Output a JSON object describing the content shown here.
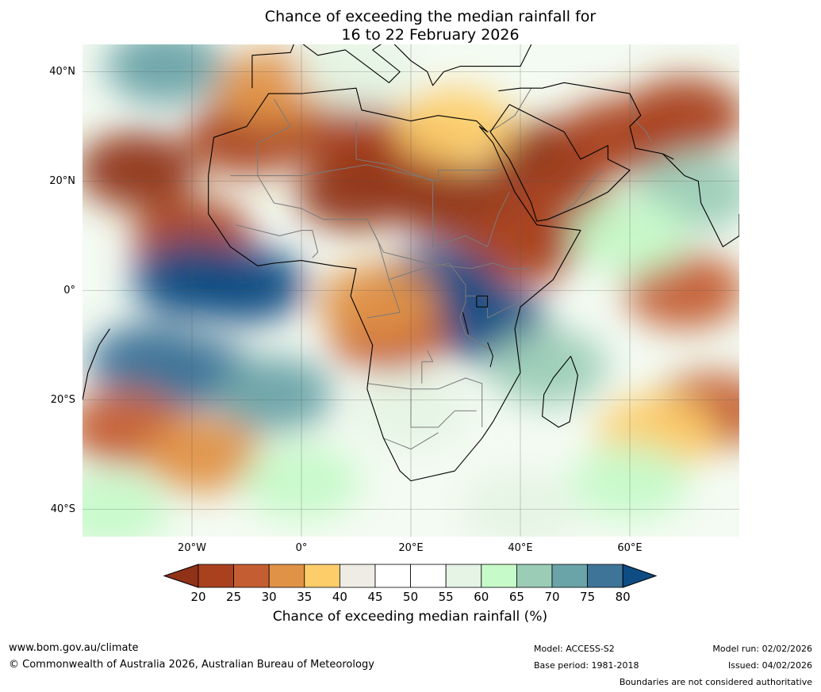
{
  "title": {
    "line1": "Chance of exceeding the median rainfall for",
    "line2": "16 to 22 February 2026"
  },
  "map": {
    "latitude_labels": [
      "40°N",
      "20°N",
      "0°",
      "20°S",
      "40°S"
    ],
    "longitude_labels": [
      "20°W",
      "0°",
      "20°E",
      "40°E",
      "60°E"
    ],
    "extent": {
      "lon": [
        -40,
        80
      ],
      "lat": [
        -45,
        45
      ]
    }
  },
  "colorbar": {
    "ticks": [
      "20",
      "25",
      "30",
      "35",
      "40",
      "45",
      "50",
      "55",
      "60",
      "65",
      "70",
      "75",
      "80"
    ],
    "colors": [
      "#8f3218",
      "#a9411f",
      "#c45e32",
      "#e09246",
      "#fdcd6a",
      "#efece6",
      "#ffffff",
      "#ffffff",
      "#e5f4e4",
      "#c6fac9",
      "#9bccb6",
      "#6aa3a8",
      "#3f7499",
      "#0e4c83"
    ],
    "label": "Chance of exceeding median rainfall (%)"
  },
  "footer": {
    "website": "www.bom.gov.au/climate",
    "copyright": "© Commonwealth of Australia 2026, Australian Bureau of Meteorology",
    "model": "Model: ACCESS-S2",
    "base_period": "Base period: 1981-2018",
    "model_run": "Model run: 02/02/2026",
    "issued": "Issued: 04/02/2026",
    "disclaimer": "Boundaries are not considered authoritative"
  },
  "regions": [
    {
      "lon": -30,
      "lat": 22,
      "value": 18
    },
    {
      "lon": -10,
      "lat": 28,
      "value": 20
    },
    {
      "lon": 5,
      "lat": 30,
      "value": 22
    },
    {
      "lon": 18,
      "lat": 26,
      "value": 20
    },
    {
      "lon": 10,
      "lat": 18,
      "value": 18
    },
    {
      "lon": 28,
      "lat": 16,
      "value": 19
    },
    {
      "lon": 45,
      "lat": 24,
      "value": 18
    },
    {
      "lon": 58,
      "lat": 28,
      "value": 22
    },
    {
      "lon": 70,
      "lat": 32,
      "value": 22
    },
    {
      "lon": -20,
      "lat": 10,
      "value": 24
    },
    {
      "lon": 40,
      "lat": 8,
      "value": 24
    },
    {
      "lon": 48,
      "lat": 14,
      "value": 24
    },
    {
      "lon": 28,
      "lat": 30,
      "value": 36
    },
    {
      "lon": -5,
      "lat": 37,
      "value": 32
    },
    {
      "lon": -25,
      "lat": 41,
      "value": 70
    },
    {
      "lon": -20,
      "lat": 2,
      "value": 82
    },
    {
      "lon": -10,
      "lat": 1,
      "value": 82
    },
    {
      "lon": 25,
      "lat": 1,
      "value": 80
    },
    {
      "lon": 34,
      "lat": -6,
      "value": 80
    },
    {
      "lon": -20,
      "lat": -15,
      "value": 78
    },
    {
      "lon": -28,
      "lat": -13,
      "value": 76
    },
    {
      "lon": -5,
      "lat": -19,
      "value": 70
    },
    {
      "lon": 16,
      "lat": -8,
      "value": 28
    },
    {
      "lon": 14,
      "lat": -2,
      "value": 32
    },
    {
      "lon": -32,
      "lat": -25,
      "value": 28
    },
    {
      "lon": -18,
      "lat": -30,
      "value": 34
    },
    {
      "lon": 70,
      "lat": 0,
      "value": 28
    },
    {
      "lon": 75,
      "lat": -22,
      "value": 26
    },
    {
      "lon": 65,
      "lat": -26,
      "value": 36
    },
    {
      "lon": 72,
      "lat": 18,
      "value": 66
    },
    {
      "lon": 60,
      "lat": 10,
      "value": 64
    },
    {
      "lon": 45,
      "lat": -14,
      "value": 66
    },
    {
      "lon": 20,
      "lat": -22,
      "value": 58
    },
    {
      "lon": 60,
      "lat": -35,
      "value": 62
    },
    {
      "lon": 0,
      "lat": -35,
      "value": 60
    },
    {
      "lon": -35,
      "lat": -40,
      "value": 62
    },
    {
      "lon": 40,
      "lat": -40,
      "value": 55
    },
    {
      "lon": 10,
      "lat": 40,
      "value": 55
    }
  ],
  "outlines": {
    "africa": [
      [
        -17,
        21
      ],
      [
        -16,
        28
      ],
      [
        -10,
        30
      ],
      [
        -6,
        36
      ],
      [
        0,
        36
      ],
      [
        10,
        37
      ],
      [
        11,
        33
      ],
      [
        20,
        31
      ],
      [
        25,
        32
      ],
      [
        32,
        31
      ],
      [
        34,
        29
      ],
      [
        32.5,
        30
      ],
      [
        35,
        27
      ],
      [
        39,
        18
      ],
      [
        43,
        12
      ],
      [
        51,
        11
      ],
      [
        46,
        2
      ],
      [
        40,
        -3
      ],
      [
        39,
        -7
      ],
      [
        40,
        -15
      ],
      [
        35,
        -24
      ],
      [
        33,
        -27
      ],
      [
        28,
        -33
      ],
      [
        20,
        -34.8
      ],
      [
        18,
        -33
      ],
      [
        15,
        -27
      ],
      [
        12,
        -18
      ],
      [
        13,
        -10
      ],
      [
        9,
        -1
      ],
      [
        10,
        4
      ],
      [
        6,
        4.5
      ],
      [
        0,
        5.5
      ],
      [
        -5,
        5
      ],
      [
        -8,
        4.5
      ],
      [
        -13,
        8
      ],
      [
        -17,
        14
      ],
      [
        -17,
        21
      ]
    ],
    "arabia": [
      [
        34.5,
        29
      ],
      [
        38,
        24
      ],
      [
        42,
        16
      ],
      [
        43,
        12.7
      ],
      [
        45,
        13
      ],
      [
        52,
        16
      ],
      [
        56,
        18
      ],
      [
        60,
        22
      ],
      [
        56,
        24
      ],
      [
        56,
        26.5
      ],
      [
        51,
        24
      ],
      [
        48,
        29
      ],
      [
        44,
        31
      ],
      [
        38,
        34
      ],
      [
        34.5,
        29
      ]
    ],
    "europe": [
      [
        -9,
        37
      ],
      [
        -9,
        43
      ],
      [
        -2,
        43.5
      ],
      [
        -1,
        46
      ],
      [
        3,
        43
      ],
      [
        8,
        44
      ],
      [
        12,
        41
      ],
      [
        16,
        38
      ],
      [
        18,
        40
      ],
      [
        13,
        44
      ],
      [
        16,
        46
      ],
      [
        20,
        42
      ],
      [
        23,
        40
      ],
      [
        24,
        37.5
      ],
      [
        26,
        40
      ],
      [
        29,
        41
      ],
      [
        36,
        41
      ],
      [
        40,
        41
      ],
      [
        42,
        45
      ]
    ],
    "turkey_iran": [
      [
        36,
        36.5
      ],
      [
        40,
        37
      ],
      [
        44,
        37
      ],
      [
        48,
        38
      ],
      [
        54,
        37
      ],
      [
        60,
        36
      ],
      [
        62,
        32
      ],
      [
        60,
        30
      ],
      [
        61,
        26
      ],
      [
        66,
        25
      ],
      [
        68,
        24
      ]
    ],
    "india": [
      [
        66,
        25
      ],
      [
        68,
        23
      ],
      [
        70,
        21
      ],
      [
        72.5,
        20
      ],
      [
        73,
        16
      ],
      [
        74.5,
        13
      ],
      [
        77,
        8
      ],
      [
        80,
        10
      ],
      [
        80,
        14
      ]
    ],
    "madagascar": [
      [
        49.2,
        -12
      ],
      [
        50.5,
        -15.5
      ],
      [
        49,
        -24
      ],
      [
        47,
        -25
      ],
      [
        44,
        -23
      ],
      [
        44.3,
        -19
      ],
      [
        46,
        -16
      ],
      [
        49.2,
        -12
      ]
    ],
    "south_america": [
      [
        -35,
        -7
      ],
      [
        -37,
        -10
      ],
      [
        -39,
        -15
      ],
      [
        -40,
        -20
      ]
    ],
    "borders": [
      [
        [
          -13,
          21
        ],
        [
          0,
          21
        ],
        [
          12,
          23
        ],
        [
          25,
          20
        ],
        [
          25,
          22
        ],
        [
          36,
          22
        ]
      ],
      [
        [
          -5,
          35
        ],
        [
          -2,
          30
        ],
        [
          -8,
          27
        ],
        [
          -8,
          21
        ],
        [
          -5,
          16
        ],
        [
          0,
          15
        ],
        [
          4,
          13
        ],
        [
          12,
          13
        ],
        [
          15,
          7
        ],
        [
          23,
          5
        ],
        [
          31,
          4
        ],
        [
          35,
          5
        ],
        [
          38,
          4
        ],
        [
          42,
          4
        ]
      ],
      [
        [
          10,
          31
        ],
        [
          10,
          24
        ],
        [
          16,
          23
        ],
        [
          24,
          20
        ],
        [
          24,
          8
        ],
        [
          30,
          10
        ],
        [
          34,
          8
        ],
        [
          36,
          14
        ],
        [
          38,
          18
        ]
      ],
      [
        [
          12,
          13
        ],
        [
          14,
          9
        ],
        [
          16,
          2
        ],
        [
          18,
          -4
        ],
        [
          12,
          -5
        ]
      ],
      [
        [
          16,
          2
        ],
        [
          22,
          4
        ],
        [
          27,
          5
        ],
        [
          30,
          1
        ],
        [
          30,
          -2
        ],
        [
          29,
          -5
        ],
        [
          30,
          -8
        ],
        [
          33,
          -10
        ],
        [
          35,
          -11
        ]
      ],
      [
        [
          12,
          -17
        ],
        [
          20,
          -18
        ],
        [
          25,
          -18
        ],
        [
          30,
          -16
        ],
        [
          33,
          -17
        ],
        [
          33,
          -25
        ]
      ],
      [
        [
          20,
          -18
        ],
        [
          20,
          -25
        ],
        [
          25,
          -25
        ],
        [
          28,
          -22
        ],
        [
          32,
          -22
        ]
      ],
      [
        [
          15,
          -27
        ],
        [
          20,
          -29
        ],
        [
          25,
          -26
        ]
      ],
      [
        [
          23,
          -11
        ],
        [
          24,
          -13
        ],
        [
          22,
          -13
        ],
        [
          22,
          -17
        ]
      ],
      [
        [
          -12,
          12
        ],
        [
          -8,
          11
        ],
        [
          -4,
          10
        ],
        [
          0,
          11
        ],
        [
          2,
          11
        ],
        [
          3,
          7
        ],
        [
          2,
          6
        ]
      ],
      [
        [
          30,
          -1
        ],
        [
          34,
          -1
        ],
        [
          34,
          -5
        ],
        [
          38,
          -3
        ],
        [
          40,
          -2
        ]
      ],
      [
        [
          34,
          29
        ],
        [
          36,
          30
        ],
        [
          39,
          32
        ],
        [
          42,
          37
        ]
      ],
      [
        [
          46,
          13
        ],
        [
          50,
          16
        ],
        [
          53,
          20
        ],
        [
          55,
          22
        ]
      ],
      [
        [
          60,
          36
        ],
        [
          61,
          31
        ],
        [
          63,
          29
        ],
        [
          64,
          27
        ]
      ]
    ],
    "lakes": [
      [
        [
          32,
          -1
        ],
        [
          34,
          -1
        ],
        [
          34,
          -3
        ],
        [
          32,
          -3
        ],
        [
          32,
          -1
        ]
      ],
      [
        [
          29.5,
          -4
        ],
        [
          30,
          -6
        ],
        [
          30.5,
          -8
        ]
      ],
      [
        [
          34,
          -9.5
        ],
        [
          35,
          -12
        ],
        [
          34.5,
          -14
        ]
      ]
    ]
  }
}
